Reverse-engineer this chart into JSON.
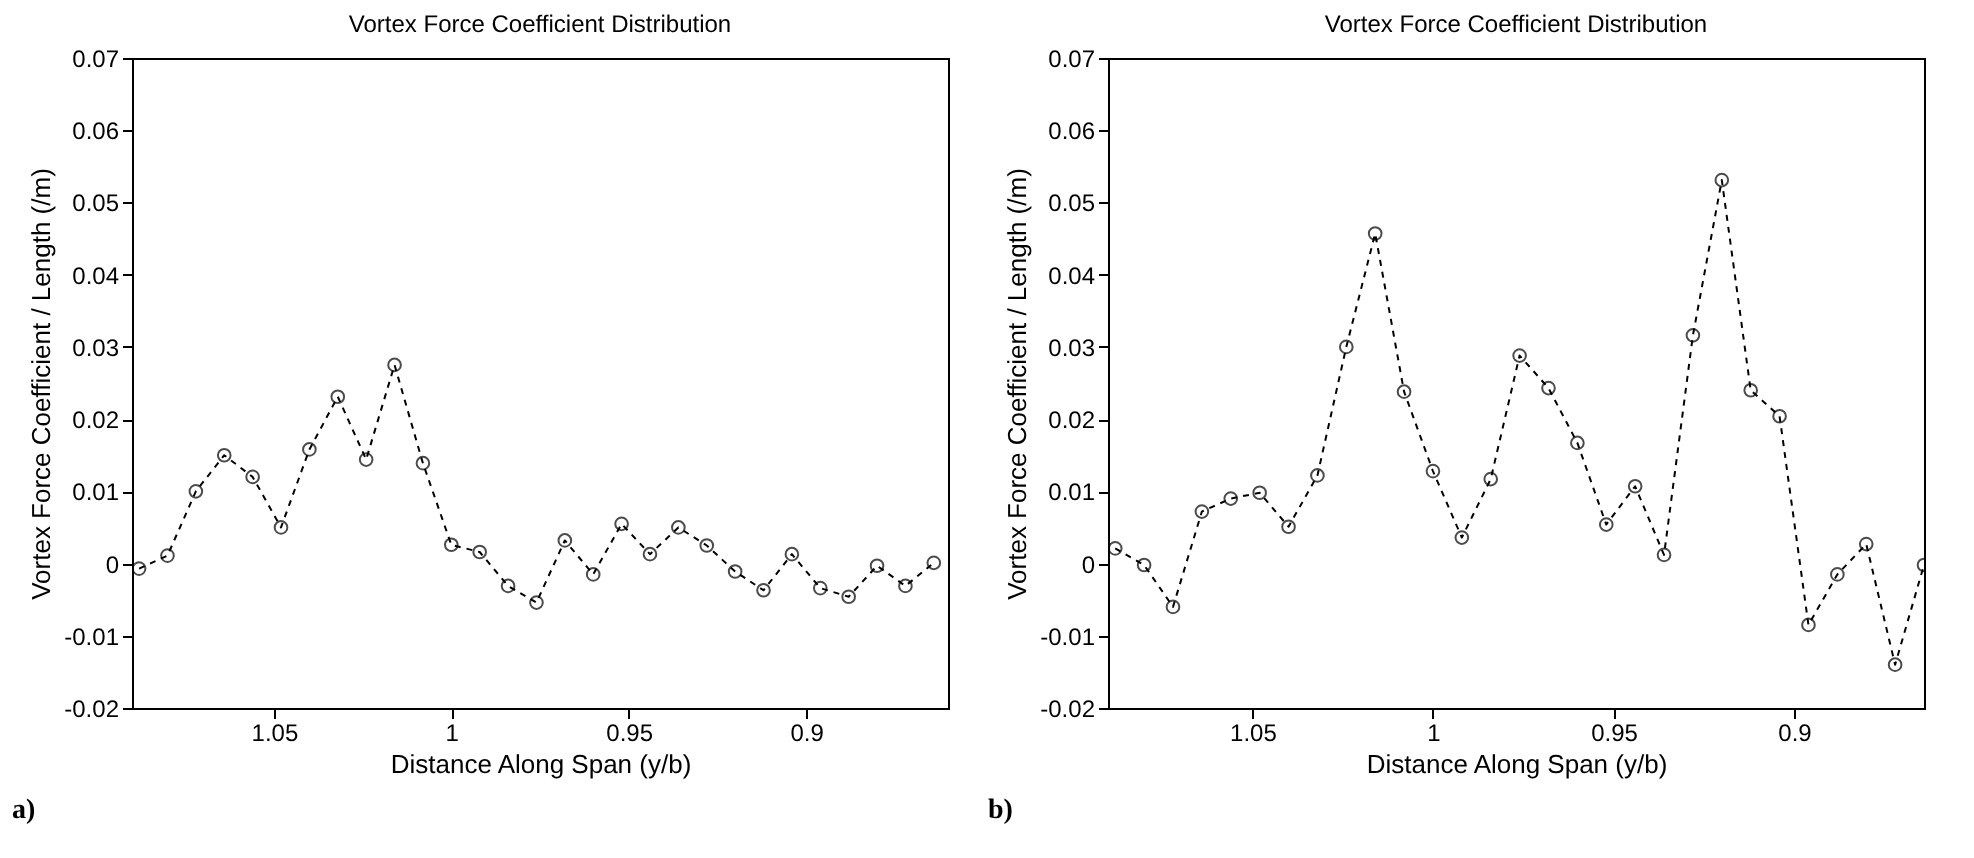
{
  "chart_data": [
    {
      "type": "line",
      "title": "Vortex Force Coefficient Distribution",
      "xlabel": "Distance Along Span (y/b)",
      "ylabel": "Vortex Force Coefficient / Length (/m)",
      "x": [
        1.088,
        1.08,
        1.072,
        1.064,
        1.056,
        1.048,
        1.04,
        1.032,
        1.024,
        1.016,
        1.008,
        1.0,
        0.992,
        0.984,
        0.976,
        0.968,
        0.96,
        0.952,
        0.944,
        0.936,
        0.928,
        0.92,
        0.912,
        0.904,
        0.896,
        0.888,
        0.88,
        0.872,
        0.864
      ],
      "series": [
        {
          "color": "#000000",
          "values": [
            -0.0007,
            0.0011,
            0.01,
            0.015,
            0.012,
            0.005,
            0.0158,
            0.0231,
            0.0144,
            0.0275,
            0.0139,
            0.0026,
            0.0016,
            -0.0031,
            -0.0054,
            0.0032,
            -0.0015,
            0.0055,
            0.0013,
            0.005,
            0.0025,
            -0.0011,
            -0.0037,
            0.0013,
            -0.0034,
            -0.0046,
            -0.0003,
            -0.0031,
            0.0001
          ]
        }
      ],
      "xlim": [
        1.09,
        0.86
      ],
      "xticks": [
        1.05,
        1,
        0.95,
        0.9
      ],
      "ylim": [
        -0.02,
        0.07
      ],
      "yticks": [
        -0.02,
        -0.01,
        0,
        0.01,
        0.02,
        0.03,
        0.04,
        0.05,
        0.06,
        0.07
      ],
      "marker": "circle",
      "line_style": "dashed",
      "grid": false,
      "annotations": [
        "a)"
      ]
    },
    {
      "type": "line",
      "title": "Vortex Force Coefficient Distribution",
      "xlabel": "Distance Along Span (y/b)",
      "ylabel": "Vortex Force Coefficient / Length (/m)",
      "x": [
        1.088,
        1.08,
        1.072,
        1.064,
        1.056,
        1.048,
        1.04,
        1.032,
        1.024,
        1.016,
        1.008,
        1.0,
        0.992,
        0.984,
        0.976,
        0.968,
        0.96,
        0.952,
        0.944,
        0.936,
        0.928,
        0.92,
        0.912,
        0.904,
        0.896,
        0.888,
        0.88,
        0.872,
        0.864
      ],
      "series": [
        {
          "color": "#000000",
          "values": [
            0.0021,
            -0.0002,
            -0.006,
            0.0072,
            0.009,
            0.0098,
            0.0051,
            0.0122,
            0.03,
            0.0457,
            0.0238,
            0.0128,
            0.0036,
            0.0117,
            0.0288,
            0.0243,
            0.0167,
            0.0054,
            0.0107,
            0.0012,
            0.0316,
            0.0531,
            0.024,
            0.0204,
            -0.0085,
            -0.0015,
            0.0027,
            -0.014,
            -0.0002
          ]
        }
      ],
      "xlim": [
        1.09,
        0.864
      ],
      "xticks": [
        1.05,
        1,
        0.95,
        0.9
      ],
      "ylim": [
        -0.02,
        0.07
      ],
      "yticks": [
        -0.02,
        -0.01,
        0,
        0.01,
        0.02,
        0.03,
        0.04,
        0.05,
        0.06,
        0.07
      ],
      "marker": "circle",
      "line_style": "dashed",
      "grid": false,
      "annotations": [
        "b)"
      ]
    }
  ]
}
